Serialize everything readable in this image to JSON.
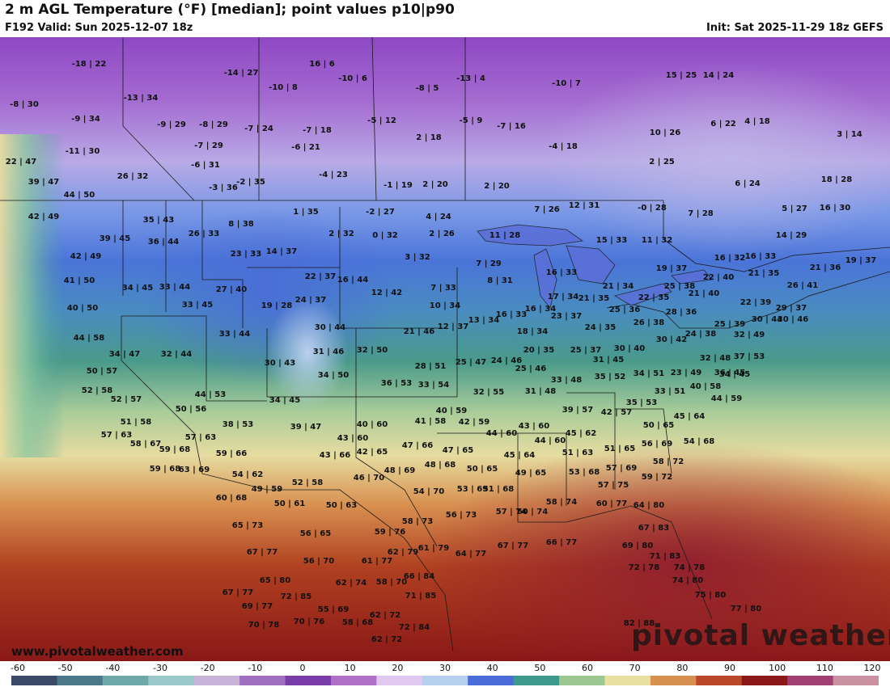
{
  "header": {
    "title": "2 m AGL Temperature (°F) [median]; point values p10|p90",
    "valid": "F192 Valid: Sun 2025-12-07 18z",
    "init": "Init: Sat 2025-11-29 18z GEFS"
  },
  "branding": {
    "watermark": "pivotal weather",
    "url": "www.pivotalweather.com"
  },
  "colorbar": {
    "ticks": [
      "-60",
      "-50",
      "-40",
      "-30",
      "-20",
      "-10",
      "0",
      "10",
      "20",
      "30",
      "40",
      "50",
      "60",
      "70",
      "80",
      "90",
      "100",
      "110",
      "120"
    ],
    "colors": [
      "#3a4a66",
      "#4a7888",
      "#6fa8a8",
      "#9ac8c8",
      "#c8b4d8",
      "#a070c0",
      "#7a3ca8",
      "#b070c8",
      "#e0c8f0",
      "#b8d0f0",
      "#4a6cd8",
      "#3c9a8c",
      "#9ac890",
      "#e8e0a0",
      "#d89050",
      "#b84828",
      "#8a1818",
      "#a04070",
      "#c890a0"
    ]
  },
  "point_values": [
    "-18 | 22",
    "-14 | 27",
    "16 | 6",
    "-10 | 6",
    "-13 | 4",
    "-10 | 7",
    "15 | 25",
    "14 | 24",
    "-8 | 30",
    "-13 | 34",
    "-10 | 8",
    "-8 | 5",
    "-9 | 34",
    "-9 | 29",
    "-8 | 29",
    "-7 | 24",
    "-7 | 18",
    "-5 | 12",
    "-5 | 9",
    "-7 | 16",
    "6 | 22",
    "4 | 18",
    "3 | 14",
    "-11 | 30",
    "-7 | 29",
    "-6 | 21",
    "2 | 18",
    "-4 | 18",
    "10 | 26",
    "22 | 47",
    "-6 | 31",
    "2 | 25",
    "26 | 32",
    "39 | 47",
    "-3 | 36",
    "-2 | 35",
    "-4 | 23",
    "-1 | 19",
    "2 | 20",
    "2 | 20",
    "6 | 24",
    "18 | 28",
    "44 | 50",
    "1 | 35",
    "-2 | 27",
    "4 | 24",
    "7 | 26",
    "12 | 31",
    "-0 | 28",
    "7 | 28",
    "5 | 27",
    "16 | 30",
    "42 | 49",
    "35 | 43",
    "8 | 38",
    "2 | 32",
    "0 | 32",
    "2 | 26",
    "11 | 28",
    "14 | 29",
    "39 | 45",
    "36 | 44",
    "26 | 33",
    "15 | 33",
    "11 | 32",
    "16 | 32",
    "16 | 33",
    "42 | 49",
    "23 | 33",
    "14 | 37",
    "3 | 32",
    "7 | 29",
    "19 | 37",
    "21 | 36",
    "19 | 37",
    "41 | 50",
    "34 | 45",
    "33 | 44",
    "22 | 37",
    "16 | 44",
    "8 | 31",
    "16 | 33",
    "22 | 40",
    "21 | 35",
    "27 | 40",
    "12 | 42",
    "7 | 33",
    "21 | 34",
    "25 | 38",
    "26 | 41",
    "40 | 50",
    "33 | 45",
    "19 | 28",
    "24 | 37",
    "10 | 34",
    "17 | 34",
    "21 | 35",
    "22 | 35",
    "21 | 40",
    "22 | 39",
    "29 | 37",
    "16 | 33",
    "16 | 34",
    "23 | 37",
    "25 | 36",
    "28 | 36",
    "25 | 39",
    "30 | 44",
    "30 | 46",
    "44 | 58",
    "33 | 44",
    "30 | 44",
    "21 | 46",
    "12 | 37",
    "13 | 34",
    "18 | 34",
    "24 | 35",
    "26 | 38",
    "24 | 38",
    "32 | 49",
    "34 | 47",
    "32 | 44",
    "31 | 46",
    "32 | 50",
    "20 | 35",
    "25 | 37",
    "30 | 40",
    "30 | 42",
    "32 | 48",
    "37 | 53",
    "30 | 43",
    "28 | 51",
    "25 | 47",
    "24 | 46",
    "31 | 45",
    "36 | 45",
    "50 | 57",
    "34 | 50",
    "36 | 53",
    "33 | 54",
    "25 | 46",
    "33 | 48",
    "35 | 52",
    "34 | 51",
    "23 | 49",
    "34 | 45",
    "52 | 58",
    "44 | 53",
    "32 | 55",
    "31 | 48",
    "33 | 51",
    "40 | 58",
    "52 | 57",
    "34 | 45",
    "35 | 53",
    "44 | 59",
    "50 | 56",
    "40 | 59",
    "39 | 57",
    "42 | 57",
    "45 | 64",
    "51 | 58",
    "38 | 53",
    "39 | 47",
    "40 | 60",
    "41 | 58",
    "42 | 59",
    "43 | 60",
    "50 | 65",
    "57 | 63",
    "57 | 63",
    "43 | 60",
    "44 | 60",
    "44 | 60",
    "45 | 62",
    "56 | 69",
    "54 | 68",
    "58 | 67",
    "59 | 68",
    "59 | 66",
    "43 | 66",
    "42 | 65",
    "47 | 66",
    "47 | 65",
    "45 | 64",
    "51 | 63",
    "51 | 65",
    "59 | 68",
    "63 | 69",
    "54 | 62",
    "48 | 69",
    "48 | 68",
    "50 | 65",
    "49 | 65",
    "53 | 68",
    "57 | 69",
    "58 | 72",
    "46 | 70",
    "59 | 72",
    "49 | 59",
    "52 | 58",
    "54 | 70",
    "53 | 69",
    "51 | 68",
    "57 | 75",
    "60 | 68",
    "50 | 61",
    "50 | 63",
    "58 | 74",
    "60 | 77",
    "64 | 80",
    "65 | 73",
    "56 | 73",
    "57 | 74",
    "60 | 74",
    "58 | 73",
    "67 | 83",
    "56 | 65",
    "59 | 76",
    "64 | 77",
    "67 | 77",
    "66 | 77",
    "69 | 80",
    "67 | 77",
    "56 | 70",
    "62 | 79",
    "61 | 79",
    "61 | 77",
    "71 | 83",
    "65 | 80",
    "72 | 78",
    "74 | 78",
    "62 | 74",
    "58 | 70",
    "66 | 84",
    "74 | 80",
    "67 | 77",
    "72 | 85",
    "71 | 85",
    "75 | 80",
    "69 | 77",
    "55 | 69",
    "62 | 72",
    "77 | 80",
    "70 | 78",
    "70 | 76",
    "58 | 68",
    "72 | 84",
    "82 | 88",
    "62 | 72"
  ]
}
